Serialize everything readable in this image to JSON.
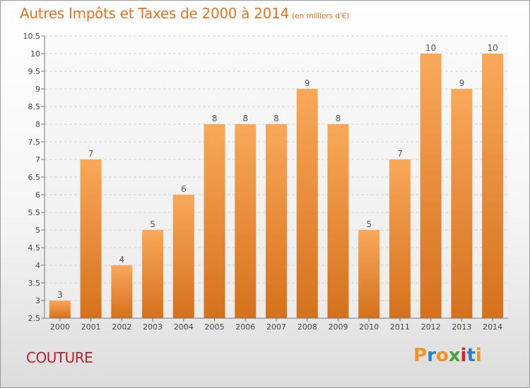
{
  "header": {
    "title": "Autres Impôts et Taxes de 2000 à 2014",
    "subtitle": "(en milliers d'€)"
  },
  "footer": {
    "commune": "COUTURE",
    "logo_text": "Proxiti"
  },
  "colors": {
    "title": "#e8731e",
    "commune": "#b0222e",
    "bar_top": "#f9a85a",
    "bar_bottom": "#d5711d",
    "logo": [
      "#f39324",
      "#2f7fc1",
      "#f39324",
      "#4aa03f",
      "#e0202e",
      "#2f7fc1",
      "#f39324"
    ]
  },
  "chart_data": {
    "type": "bar",
    "categories": [
      "2000",
      "2001",
      "2002",
      "2003",
      "2004",
      "2005",
      "2006",
      "2007",
      "2008",
      "2009",
      "2010",
      "2011",
      "2012",
      "2013",
      "2014"
    ],
    "values": [
      3,
      7,
      4,
      5,
      6,
      8,
      8,
      8,
      9,
      8,
      5,
      7,
      10,
      9,
      10
    ],
    "data_labels": [
      "3",
      "7",
      "4",
      "5",
      "6",
      "8",
      "8",
      "8",
      "9",
      "8",
      "5",
      "7",
      "10",
      "9",
      "10"
    ],
    "ylim": [
      2.5,
      10.5
    ],
    "yticks": [
      "2.5",
      "3",
      "3.5",
      "4",
      "4.5",
      "5",
      "5.5",
      "6",
      "6.5",
      "7",
      "7.5",
      "8",
      "8.5",
      "9",
      "9.5",
      "10",
      "10.5"
    ],
    "grid": true
  }
}
